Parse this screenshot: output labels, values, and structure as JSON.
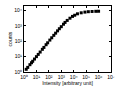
{
  "chart_data": {
    "type": "scatter",
    "x_label": "Intensity [arbitrary unit]",
    "y_label": "counts",
    "x": [
      1.5,
      2,
      3,
      4,
      5,
      7,
      10,
      14,
      20,
      30,
      40,
      60,
      80,
      120,
      170,
      250,
      350,
      500,
      700,
      1000,
      1500,
      2000,
      3000,
      5000,
      8000,
      12000,
      20000,
      40000,
      80000,
      150000,
      300000,
      600000,
      1000000
    ],
    "values": [
      1.5,
      2,
      3,
      4,
      5,
      7,
      10,
      14,
      20,
      30,
      40,
      60,
      80,
      120,
      170,
      245,
      340,
      480,
      660,
      900,
      1300,
      1700,
      2300,
      3200,
      4200,
      5000,
      6200,
      7200,
      8000,
      8500,
      8800,
      9000,
      9100
    ],
    "color": "#000000",
    "marker": "square",
    "log": true,
    "grid": false,
    "xlim": [
      1,
      10000000
    ],
    "xticks": [
      {
        "value": 1,
        "label": "10⁰"
      },
      {
        "value": 10,
        "label": "10¹"
      },
      {
        "value": 100,
        "label": "10²"
      },
      {
        "value": 1000,
        "label": "10³"
      },
      {
        "value": 10000,
        "label": "10⁴"
      },
      {
        "value": 100000,
        "label": "10⁵"
      },
      {
        "value": 1000000,
        "label": "10⁶"
      },
      {
        "value": 10000000,
        "label": "10⁷"
      }
    ],
    "ylim": [
      1,
      20000
    ],
    "yticks": [
      {
        "value": 1,
        "label": "10⁰"
      },
      {
        "value": 10,
        "label": "10¹"
      },
      {
        "value": 100,
        "label": "10²"
      },
      {
        "value": 1000,
        "label": "10³"
      },
      {
        "value": 10000,
        "label": "10⁴"
      }
    ]
  }
}
